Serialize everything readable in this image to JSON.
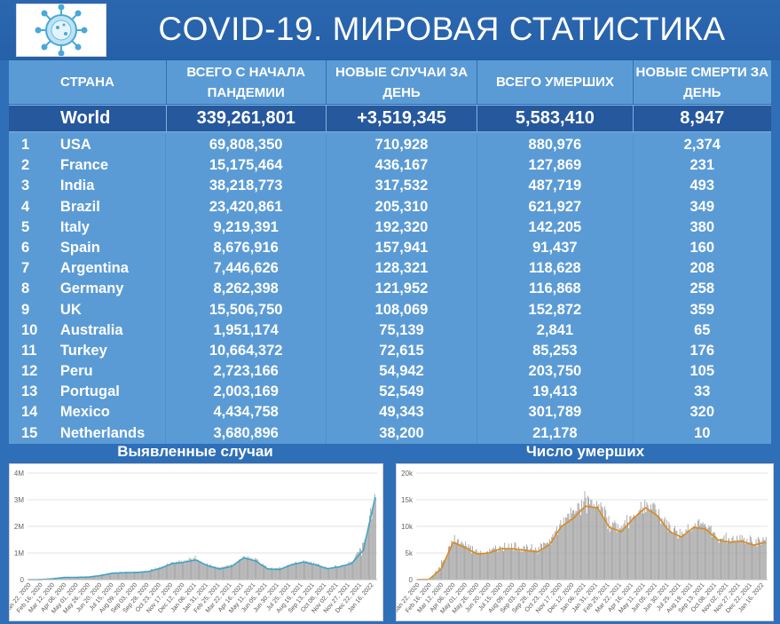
{
  "header": {
    "title": "COVID-19. МИРОВАЯ СТАТИСТИКА",
    "logo_icon": "coronavirus-icon"
  },
  "table": {
    "columns": {
      "country": "СТРАНА",
      "total_cases": "ВСЕГО С НАЧАЛА ПАНДЕМИИ",
      "new_cases": "НОВЫЕ СЛУЧАИ ЗА ДЕНЬ",
      "total_deaths": "ВСЕГО УМЕРШИХ",
      "new_deaths": "НОВЫЕ СМЕРТИ ЗА ДЕНЬ"
    },
    "world": {
      "label": "World",
      "total_cases": "339,261,801",
      "new_cases": "+3,519,345",
      "total_deaths": "5,583,410",
      "new_deaths": "8,947"
    },
    "rows": [
      {
        "rank": "1",
        "country": "USA",
        "total": "69,808,350",
        "new": "710,928",
        "deaths": "880,976",
        "new_deaths": "2,374"
      },
      {
        "rank": "2",
        "country": "France",
        "total": "15,175,464",
        "new": "436,167",
        "deaths": "127,869",
        "new_deaths": "231"
      },
      {
        "rank": "3",
        "country": "India",
        "total": "38,218,773",
        "new": "317,532",
        "deaths": "487,719",
        "new_deaths": "493"
      },
      {
        "rank": "4",
        "country": "Brazil",
        "total": "23,420,861",
        "new": "205,310",
        "deaths": "621,927",
        "new_deaths": "349"
      },
      {
        "rank": "5",
        "country": "Italy",
        "total": "9,219,391",
        "new": "192,320",
        "deaths": "142,205",
        "new_deaths": "380"
      },
      {
        "rank": "6",
        "country": "Spain",
        "total": "8,676,916",
        "new": "157,941",
        "deaths": "91,437",
        "new_deaths": "160"
      },
      {
        "rank": "7",
        "country": "Argentina",
        "total": "7,446,626",
        "new": "128,321",
        "deaths": "118,628",
        "new_deaths": "208"
      },
      {
        "rank": "8",
        "country": "Germany",
        "total": "8,262,398",
        "new": "121,952",
        "deaths": "116,868",
        "new_deaths": "258"
      },
      {
        "rank": "9",
        "country": "UK",
        "total": "15,506,750",
        "new": "108,069",
        "deaths": "152,872",
        "new_deaths": "359"
      },
      {
        "rank": "10",
        "country": "Australia",
        "total": "1,951,174",
        "new": "75,139",
        "deaths": "2,841",
        "new_deaths": "65"
      },
      {
        "rank": "11",
        "country": "Turkey",
        "total": "10,664,372",
        "new": "72,615",
        "deaths": "85,253",
        "new_deaths": "176"
      },
      {
        "rank": "12",
        "country": "Peru",
        "total": "2,723,166",
        "new": "54,942",
        "deaths": "203,750",
        "new_deaths": "105"
      },
      {
        "rank": "13",
        "country": "Portugal",
        "total": "2,003,169",
        "new": "52,549",
        "deaths": "19,413",
        "new_deaths": "33"
      },
      {
        "rank": "14",
        "country": "Mexico",
        "total": "4,434,758",
        "new": "49,343",
        "deaths": "301,789",
        "new_deaths": "320"
      },
      {
        "rank": "15",
        "country": "Netherlands",
        "total": "3,680,896",
        "new": "38,200",
        "deaths": "21,178",
        "new_deaths": "10"
      }
    ]
  },
  "colors": {
    "background": "#2f6fb8",
    "table_body": "#5b9bd5",
    "world_row": "#26589e",
    "cases_line": "#3fa3c8",
    "deaths_line": "#d98a1e",
    "bars": "#9c9c9c"
  },
  "chart_data": [
    {
      "type": "bar",
      "title": "Выявленные случаи",
      "ylim": [
        0,
        4000000
      ],
      "y_ticks": [
        "0",
        "1M",
        "2M",
        "3M",
        "4M"
      ],
      "x_tick_labels": [
        "Jan 22, 2020",
        "Feb 16, 2020",
        "Mar 12, 2020",
        "Apr 06, 2020",
        "May 01, 2020",
        "May 26, 2020",
        "Jun 20, 2020",
        "Jul 15, 2020",
        "Aug 09, 2020",
        "Sep 03, 2020",
        "Sep 28, 2020",
        "Oct 23, 2020",
        "Nov 17, 2020",
        "Dec 12, 2020",
        "Jan 06, 2021",
        "Jan 31, 2021",
        "Feb 25, 2021",
        "Mar 22, 2021",
        "Apr 16, 2021",
        "May 11, 2021",
        "Jun 05, 2021",
        "Jun 30, 2021",
        "Jul 25, 2021",
        "Aug 19, 2021",
        "Sep 13, 2021",
        "Oct 08, 2021",
        "Nov 02, 2021",
        "Nov 27, 2021",
        "Dec 22, 2021",
        "Jan 16, 2022"
      ],
      "series": [
        {
          "values_7day_avg": [
            0,
            2000,
            30000,
            80000,
            85000,
            95000,
            150000,
            240000,
            260000,
            270000,
            300000,
            420000,
            600000,
            650000,
            740000,
            520000,
            400000,
            500000,
            820000,
            700000,
            400000,
            380000,
            560000,
            660000,
            560000,
            410000,
            480000,
            600000,
            1100000,
            3100000
          ],
          "values_daily_peak": [
            0,
            5000,
            60000,
            100000,
            110000,
            120000,
            200000,
            290000,
            300000,
            310000,
            380000,
            520000,
            700000,
            760000,
            900000,
            620000,
            470000,
            600000,
            900000,
            820000,
            480000,
            460000,
            650000,
            760000,
            650000,
            480000,
            560000,
            720000,
            1500000,
            3500000
          ]
        }
      ]
    },
    {
      "type": "bar",
      "title": "Число умерших",
      "ylim": [
        0,
        20000
      ],
      "y_ticks": [
        "0",
        "5k",
        "10k",
        "15k",
        "20k"
      ],
      "x_tick_labels": [
        "Jan 22, 2020",
        "Feb 16, 2020",
        "Mar 12, 2020",
        "Apr 06, 2020",
        "May 01, 2020",
        "May 26, 2020",
        "Jun 20, 2020",
        "Jul 15, 2020",
        "Aug 09, 2020",
        "Sep 03, 2020",
        "Sep 28, 2020",
        "Oct 23, 2020",
        "Nov 17, 2020",
        "Dec 12, 2020",
        "Jan 06, 2021",
        "Jan 31, 2021",
        "Feb 25, 2021",
        "Mar 22, 2021",
        "Apr 16, 2021",
        "May 11, 2021",
        "Jun 05, 2021",
        "Jun 30, 2021",
        "Jul 25, 2021",
        "Aug 19, 2021",
        "Sep 13, 2021",
        "Oct 08, 2021",
        "Nov 02, 2021",
        "Nov 27, 2021",
        "Dec 22, 2021",
        "Jan 16, 2022"
      ],
      "series": [
        {
          "values_7day_avg": [
            0,
            50,
            2000,
            7000,
            6000,
            4800,
            5000,
            5800,
            5800,
            5500,
            5200,
            6500,
            10000,
            11500,
            13800,
            13500,
            9800,
            9000,
            11500,
            13500,
            12000,
            9000,
            8000,
            9800,
            9500,
            7500,
            7000,
            7200,
            6500,
            7000
          ],
          "values_daily_peak": [
            0,
            100,
            3500,
            8500,
            7500,
            6000,
            6000,
            7000,
            7000,
            6500,
            6500,
            8000,
            12000,
            14000,
            17000,
            15500,
            12000,
            11000,
            14000,
            15500,
            14000,
            11000,
            10000,
            11500,
            11000,
            9000,
            8500,
            8500,
            8000,
            8500
          ]
        }
      ]
    }
  ]
}
